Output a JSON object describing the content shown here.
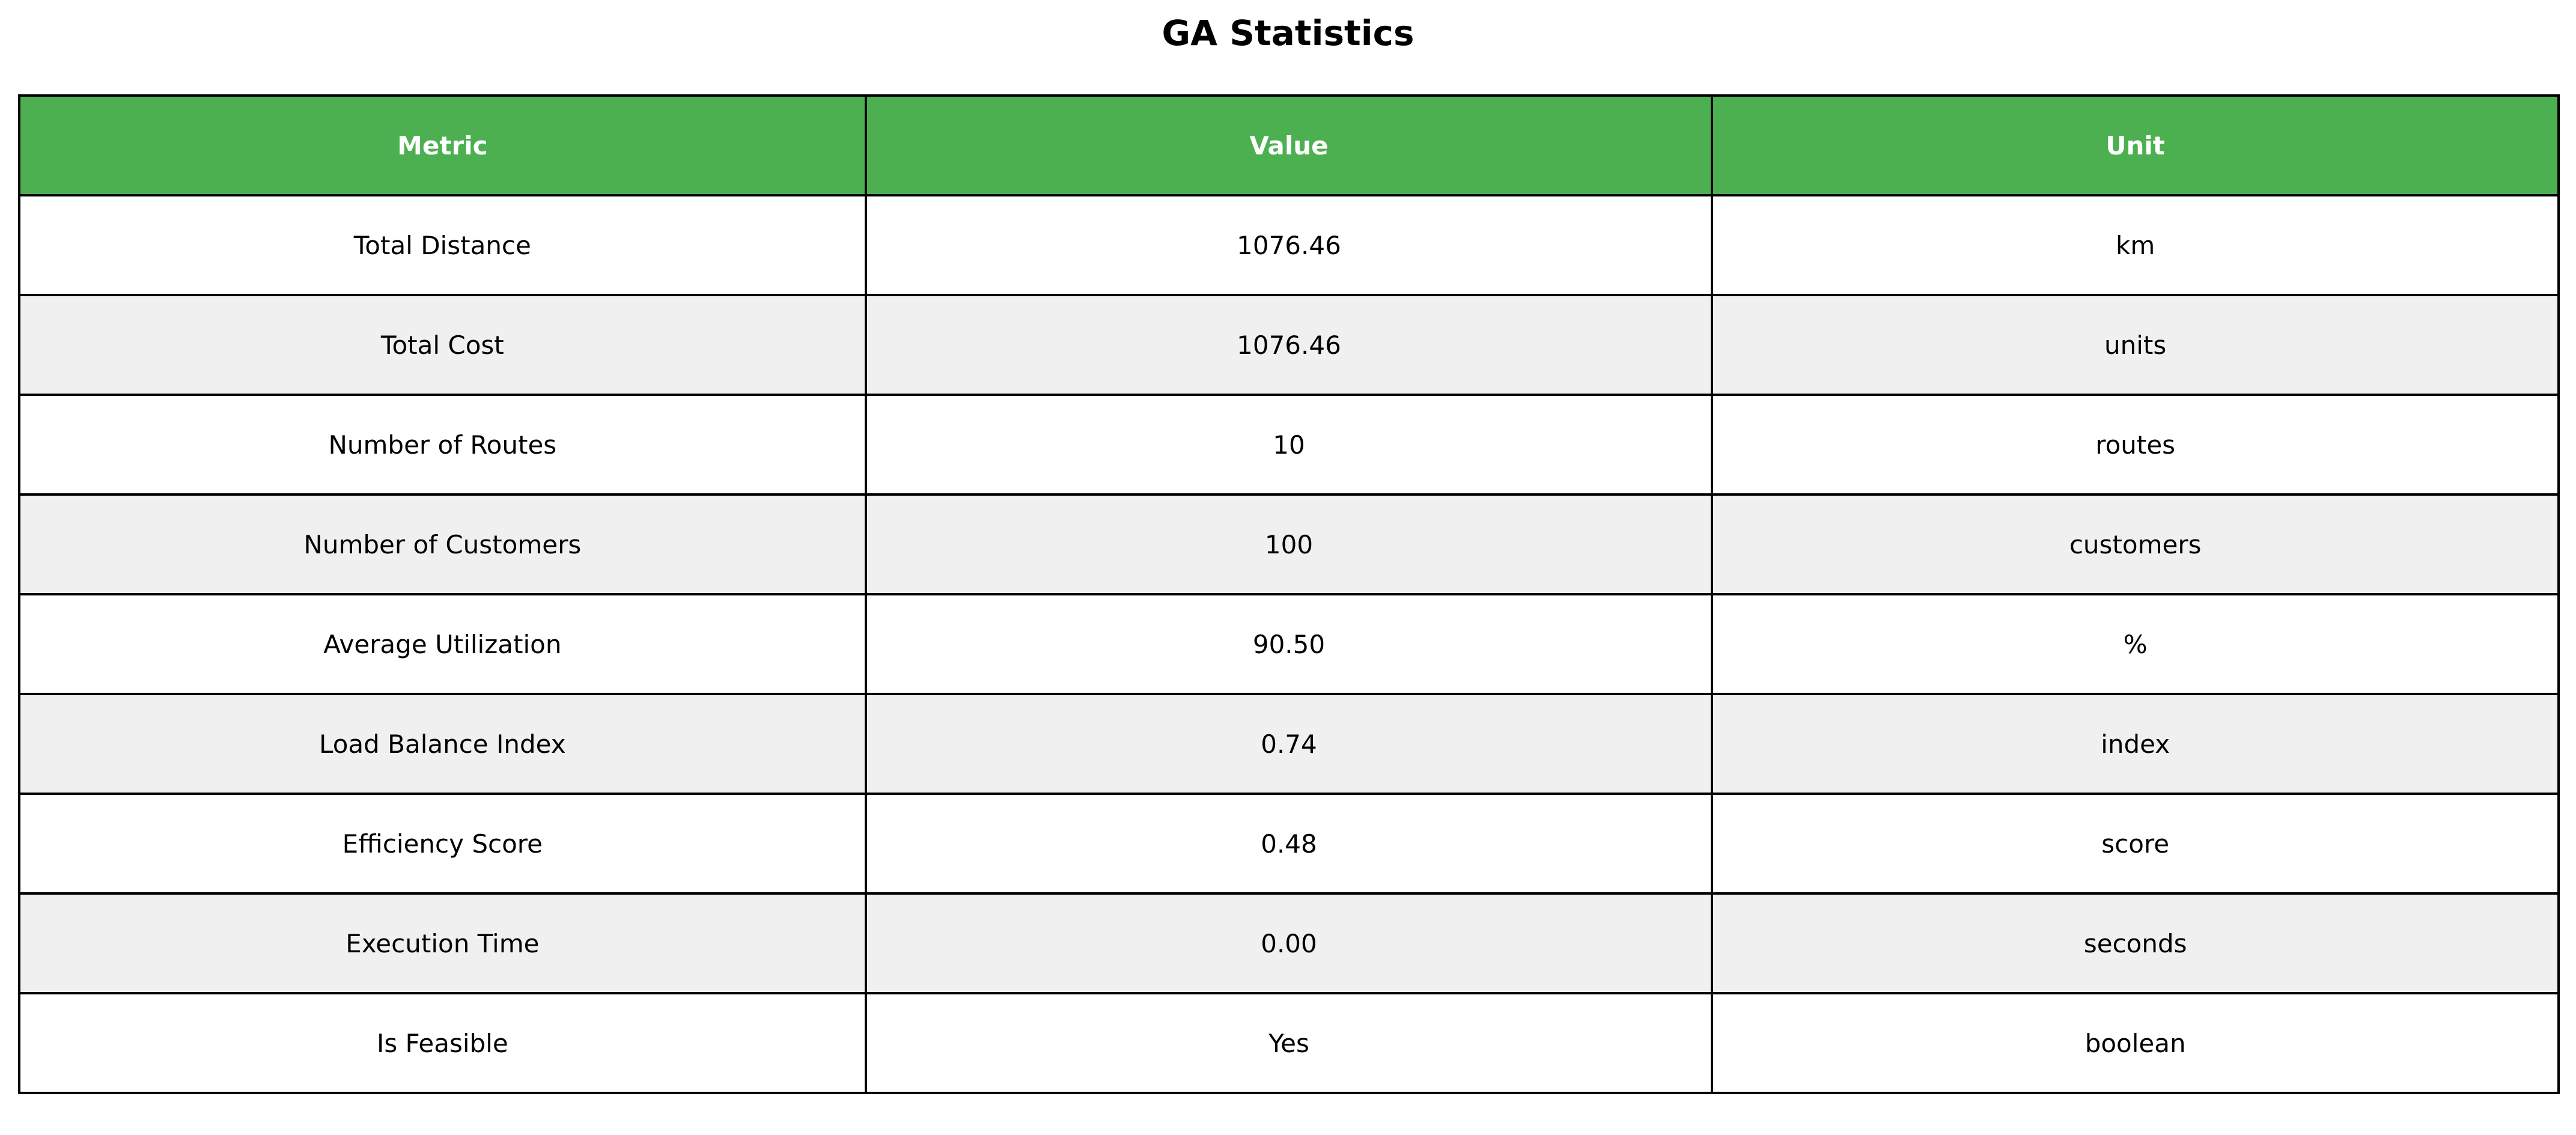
{
  "chart_data": {
    "type": "table",
    "title": "GA Statistics",
    "columns": [
      "Metric",
      "Value",
      "Unit"
    ],
    "rows": [
      [
        "Total Distance",
        "1076.46",
        "km"
      ],
      [
        "Total Cost",
        "1076.46",
        "units"
      ],
      [
        "Number of Routes",
        "10",
        "routes"
      ],
      [
        "Number of Customers",
        "100",
        "customers"
      ],
      [
        "Average Utilization",
        "90.50",
        "%"
      ],
      [
        "Load Balance Index",
        "0.74",
        "index"
      ],
      [
        "Efficiency Score",
        "0.48",
        "score"
      ],
      [
        "Execution Time",
        "0.00",
        "seconds"
      ],
      [
        "Is Feasible",
        "Yes",
        "boolean"
      ]
    ],
    "header_color": "#4caf50",
    "header_text_color": "#ffffff",
    "row_colors": [
      "#ffffff",
      "#f0f0f0"
    ]
  }
}
